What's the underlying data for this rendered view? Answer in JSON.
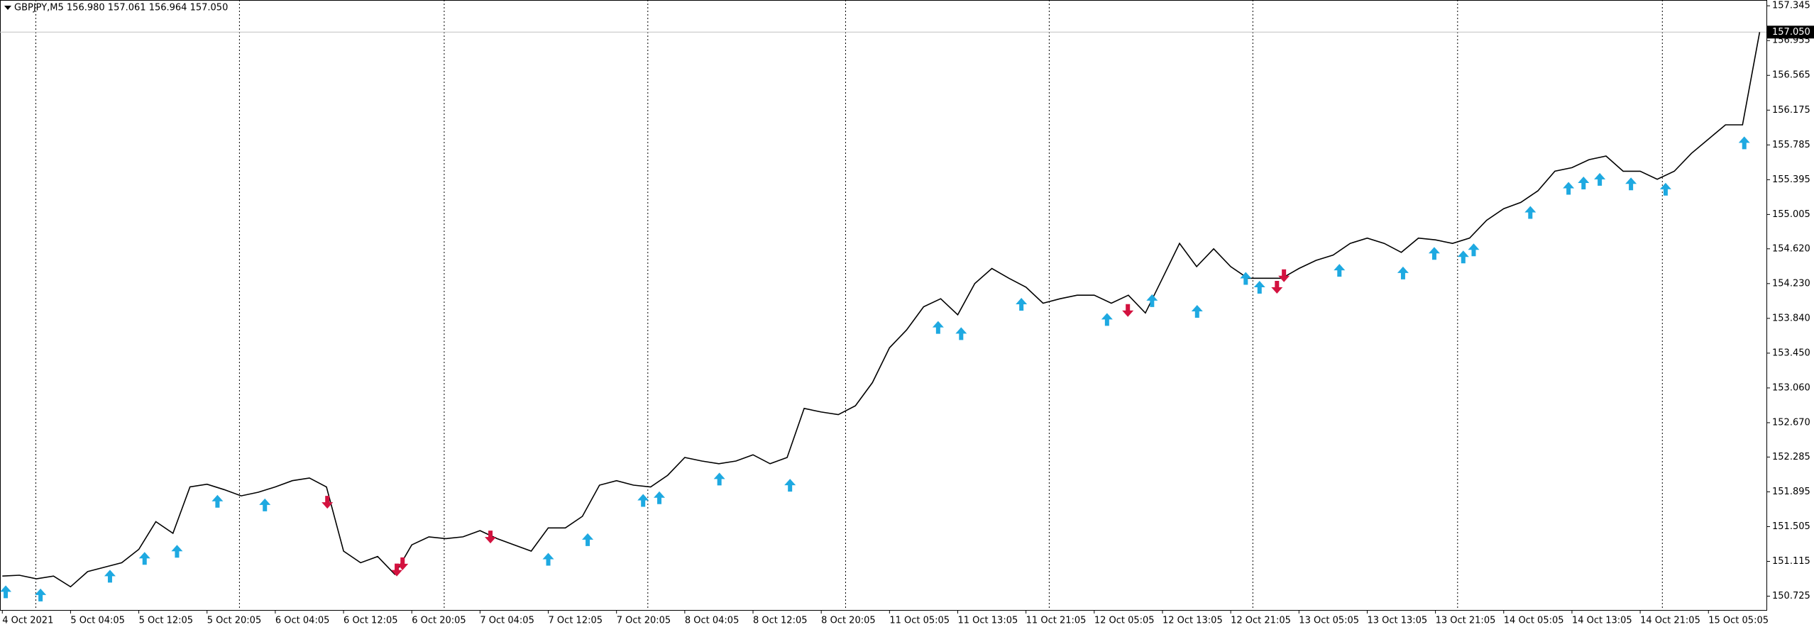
{
  "chart_data": {
    "type": "line",
    "title": "GBPJPY,M5  156.980 157.061 156.964 157.050",
    "color": "#000000",
    "categories": [
      "4 Oct 2021",
      null,
      null,
      null,
      "5 Oct 04:05",
      null,
      null,
      null,
      "5 Oct 12:05",
      null,
      null,
      null,
      "5 Oct 20:05",
      null,
      null,
      null,
      "6 Oct 04:05",
      null,
      null,
      null,
      "6 Oct 12:05",
      null,
      null,
      null,
      "6 Oct 20:05",
      null,
      null,
      null,
      "7 Oct 04:05",
      null,
      null,
      null,
      "7 Oct 12:05",
      null,
      null,
      null,
      "7 Oct 20:05",
      null,
      null,
      null,
      "8 Oct 04:05",
      null,
      null,
      null,
      "8 Oct 12:05",
      null,
      null,
      null,
      "8 Oct 20:05",
      null,
      null,
      null,
      "11 Oct 05:05",
      null,
      null,
      null,
      "11 Oct 13:05",
      null,
      null,
      null,
      "11 Oct 21:05",
      null,
      null,
      null,
      "12 Oct 05:05",
      null,
      null,
      null,
      "12 Oct 13:05",
      null,
      null,
      null,
      "12 Oct 21:05",
      null,
      null,
      null,
      "13 Oct 05:05",
      null,
      null,
      null,
      "13 Oct 13:05",
      null,
      null,
      null,
      "13 Oct 21:05",
      null,
      null,
      null,
      "14 Oct 05:05",
      null,
      null,
      null,
      "14 Oct 13:05",
      null,
      null,
      null,
      "14 Oct 21:05",
      null,
      null,
      null,
      "15 Oct 05:05",
      null,
      null,
      null
    ],
    "values": [
      150.95,
      150.96,
      150.92,
      150.95,
      150.83,
      151.0,
      151.05,
      151.1,
      151.25,
      151.56,
      151.43,
      151.95,
      151.98,
      151.92,
      151.85,
      151.89,
      151.95,
      152.02,
      152.05,
      151.95,
      151.23,
      151.1,
      151.17,
      150.97,
      151.3,
      151.39,
      151.37,
      151.39,
      151.46,
      151.37,
      151.3,
      151.23,
      151.49,
      151.49,
      151.62,
      151.97,
      152.02,
      151.97,
      151.95,
      152.08,
      152.28,
      152.24,
      152.21,
      152.24,
      152.31,
      152.21,
      152.28,
      152.83,
      152.79,
      152.76,
      152.86,
      153.12,
      153.51,
      153.71,
      153.97,
      154.06,
      153.88,
      154.23,
      154.4,
      154.29,
      154.19,
      154.01,
      154.06,
      154.1,
      154.1,
      154.01,
      154.1,
      153.9,
      154.29,
      154.68,
      154.42,
      154.62,
      154.42,
      154.29,
      154.29,
      154.29,
      154.4,
      154.49,
      154.55,
      154.68,
      154.74,
      154.68,
      154.58,
      154.74,
      154.72,
      154.68,
      154.74,
      154.94,
      155.07,
      155.14,
      155.27,
      155.49,
      155.53,
      155.62,
      155.66,
      155.49,
      155.49,
      155.4,
      155.49,
      155.69,
      155.85,
      156.01,
      156.01,
      157.05
    ],
    "ylim": [
      150.57,
      157.41
    ],
    "yticks": [
      157.345,
      156.955,
      156.565,
      156.175,
      155.785,
      155.395,
      155.005,
      {
        "value": 154.62,
        "label": "154.620"
      },
      {
        "value": 154.23,
        "label": "154.230"
      },
      {
        "value": 153.84,
        "label": "153.840"
      },
      {
        "value": 153.45,
        "label": "153.450"
      },
      {
        "value": 153.06,
        "label": "153.060"
      },
      {
        "value": 152.67,
        "label": "152.670"
      },
      152.285,
      151.895,
      151.505,
      151.115,
      150.725
    ],
    "last_price": {
      "value": 157.05,
      "label": "157.050"
    },
    "markers": {
      "up": {
        "color": "#1ea9e1",
        "x": [
          0.2,
          2.24,
          6.31,
          8.34,
          10.24,
          12.61,
          15.39,
          32,
          34.31,
          37.56,
          38.51,
          42.03,
          46.17,
          54.85,
          56.2,
          59.73,
          64.75,
          67.39,
          70.03,
          72.88,
          73.69,
          78.37,
          82.1,
          83.93,
          85.63,
          86.24,
          89.56,
          91.8,
          92.68,
          93.63,
          95.46,
          97.49,
          102.1
        ],
        "y": [
          150.845,
          150.81,
          151.02,
          151.22,
          151.3,
          151.86,
          151.82,
          151.21,
          151.43,
          151.87,
          151.9,
          152.11,
          152.04,
          153.81,
          153.74,
          154.07,
          153.9,
          154.11,
          153.99,
          154.36,
          154.26,
          154.45,
          154.42,
          154.64,
          154.6,
          154.68,
          155.1,
          155.37,
          155.43,
          155.47,
          155.42,
          155.36,
          155.88
        ]
      },
      "down": {
        "color": "#d3123f",
        "x": [
          19.05,
          23.12,
          23.46,
          28.61,
          65.97,
          74.71,
          75.12
        ],
        "y": [
          151.85,
          151.09,
          151.16,
          151.46,
          154.0,
          154.26,
          154.39
        ]
      }
    }
  }
}
